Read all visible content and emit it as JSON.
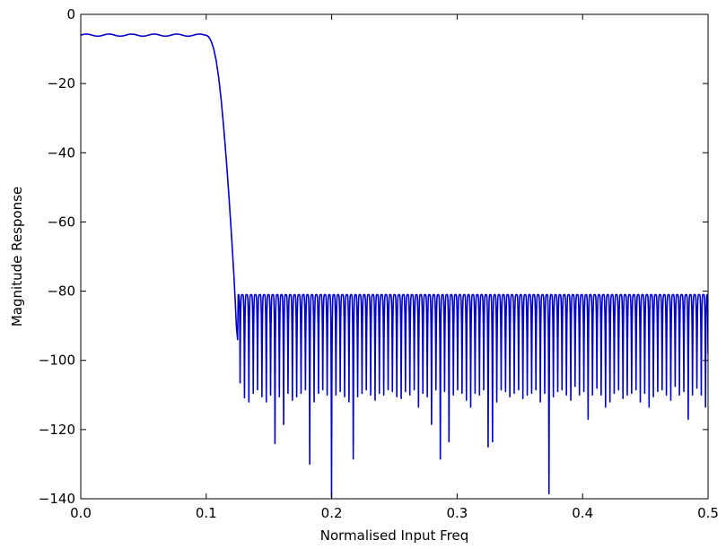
{
  "chart_data": {
    "type": "line",
    "title": "",
    "xlabel": "Normalised Input Freq",
    "ylabel": "Magnitude Response",
    "xlim": [
      0.0,
      0.5
    ],
    "ylim": [
      -140,
      0
    ],
    "x_ticks": [
      0.0,
      0.1,
      0.2,
      0.3,
      0.4,
      0.5
    ],
    "x_tick_labels": [
      "0.0",
      "0.1",
      "0.2",
      "0.3",
      "0.4",
      "0.5"
    ],
    "y_ticks": [
      0,
      -20,
      -40,
      -60,
      -80,
      -100,
      -120,
      -140
    ],
    "y_tick_labels": [
      "0",
      "−20",
      "−40",
      "−60",
      "−80",
      "−100",
      "−120",
      "−140"
    ],
    "grid": false,
    "legend": "none",
    "series_color": "#0000cc",
    "passband": {
      "x_start": 0.0,
      "x_edge": 0.1,
      "level": -6.0,
      "ripple": 0.3,
      "transition_points": [
        [
          0.1,
          -6.0
        ],
        [
          0.102,
          -6.5
        ],
        [
          0.104,
          -7.8
        ],
        [
          0.106,
          -10.0
        ],
        [
          0.108,
          -13.5
        ],
        [
          0.11,
          -18.5
        ],
        [
          0.112,
          -25.0
        ],
        [
          0.114,
          -33.0
        ],
        [
          0.116,
          -42.0
        ],
        [
          0.118,
          -52.0
        ],
        [
          0.12,
          -63.0
        ],
        [
          0.122,
          -75.0
        ],
        [
          0.123,
          -82.0
        ],
        [
          0.124,
          -90.0
        ],
        [
          0.125,
          -94.0
        ]
      ]
    },
    "stopband": {
      "top": -81.0,
      "start": 0.1255,
      "end": 0.5,
      "null_x": [
        0.127,
        0.1305,
        0.134,
        0.1375,
        0.1409,
        0.1444,
        0.1479,
        0.1513,
        0.1548,
        0.1583,
        0.1617,
        0.1652,
        0.1687,
        0.1721,
        0.1756,
        0.1791,
        0.1825,
        0.186,
        0.1895,
        0.1929,
        0.1964,
        0.1999,
        0.2034,
        0.2068,
        0.2103,
        0.2138,
        0.2172,
        0.2207,
        0.2242,
        0.2276,
        0.2311,
        0.2346,
        0.238,
        0.2415,
        0.245,
        0.2484,
        0.2519,
        0.2554,
        0.2588,
        0.2623,
        0.2658,
        0.2692,
        0.2727,
        0.2762,
        0.2796,
        0.2831,
        0.2866,
        0.29,
        0.2935,
        0.297,
        0.3004,
        0.3039,
        0.3074,
        0.3108,
        0.3143,
        0.3178,
        0.3212,
        0.3247,
        0.3282,
        0.3316,
        0.3351,
        0.3386,
        0.342,
        0.3455,
        0.349,
        0.3524,
        0.3559,
        0.3594,
        0.3628,
        0.3663,
        0.3698,
        0.3732,
        0.3767,
        0.3802,
        0.3836,
        0.3871,
        0.3906,
        0.394,
        0.3975,
        0.401,
        0.4044,
        0.4079,
        0.4114,
        0.4148,
        0.4183,
        0.4218,
        0.4252,
        0.4287,
        0.4322,
        0.4356,
        0.4391,
        0.4426,
        0.446,
        0.4495,
        0.453,
        0.4564,
        0.4599,
        0.4634,
        0.4668,
        0.4703,
        0.4738,
        0.4772,
        0.4807,
        0.4842,
        0.4876,
        0.4911,
        0.4946,
        0.498
      ],
      "null_depth": [
        -106.5,
        -110.8,
        -112.0,
        -109.5,
        -108.5,
        -110.5,
        -112.0,
        -110.0,
        -124.0,
        -110.5,
        -118.5,
        -109.5,
        -111.5,
        -110.5,
        -109.5,
        -108.5,
        -130.0,
        -112.0,
        -109.5,
        -108.5,
        -110.0,
        -139.5,
        -110.0,
        -109.0,
        -110.5,
        -112.0,
        -128.5,
        -110.5,
        -109.5,
        -108.5,
        -110.0,
        -111.5,
        -109.5,
        -110.0,
        -108.5,
        -109.0,
        -110.5,
        -111.0,
        -109.0,
        -110.0,
        -108.5,
        -113.5,
        -109.5,
        -110.5,
        -118.5,
        -108.5,
        -128.5,
        -109.0,
        -123.5,
        -110.0,
        -108.5,
        -109.5,
        -111.5,
        -113.5,
        -109.5,
        -110.0,
        -108.5,
        -125.0,
        -123.5,
        -112.0,
        -108.5,
        -109.0,
        -110.5,
        -109.5,
        -108.5,
        -111.0,
        -110.0,
        -109.5,
        -108.5,
        -112.0,
        -109.5,
        -138.5,
        -110.5,
        -109.0,
        -108.5,
        -110.0,
        -111.5,
        -107.5,
        -110.0,
        -109.0,
        -117.0,
        -110.0,
        -108.0,
        -110.0,
        -113.5,
        -112.0,
        -109.5,
        -108.5,
        -111.0,
        -110.0,
        -109.5,
        -108.5,
        -112.0,
        -109.5,
        -113.5,
        -110.5,
        -109.0,
        -108.5,
        -110.0,
        -111.5,
        -107.5,
        -110.0,
        -109.0,
        -117.0,
        -110.0,
        -108.0,
        -110.0,
        -113.5
      ]
    }
  }
}
